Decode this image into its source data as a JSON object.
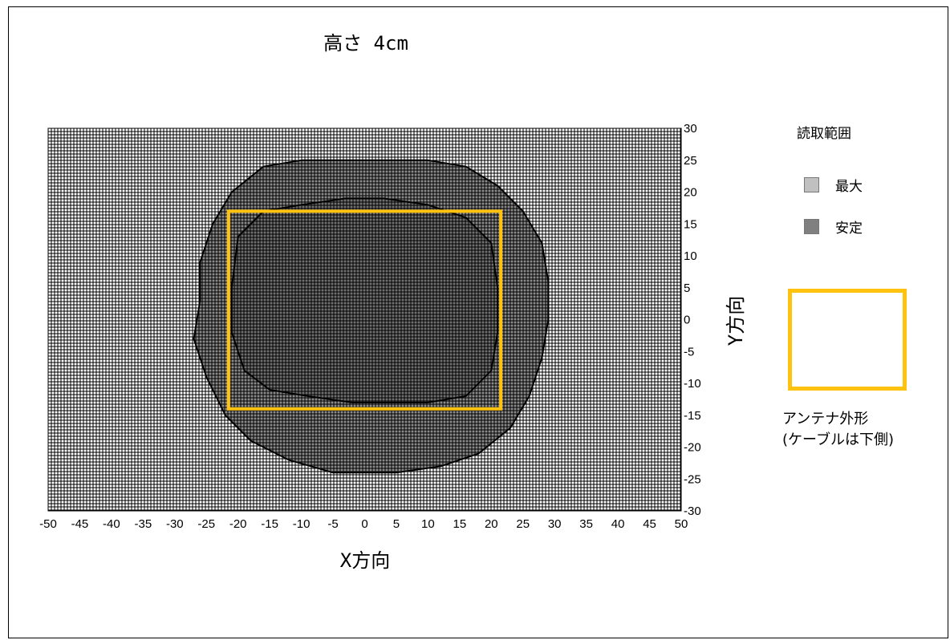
{
  "chart_data": {
    "type": "heatmap",
    "title": "高さ 4cm",
    "xlabel": "X方向",
    "ylabel": "Y方向",
    "xlim": [
      -50,
      50
    ],
    "ylim": [
      -30,
      30
    ],
    "x_ticks": [
      "-50",
      "-45",
      "-40",
      "-35",
      "-30",
      "-25",
      "-20",
      "-15",
      "-10",
      "-5",
      "0",
      "5",
      "10",
      "15",
      "20",
      "25",
      "30",
      "35",
      "40",
      "45",
      "50"
    ],
    "y_ticks": [
      "30",
      "25",
      "20",
      "15",
      "10",
      "5",
      "0",
      "-5",
      "-10",
      "-15",
      "-20",
      "-25",
      "-30"
    ],
    "grid": true,
    "legend": {
      "title": "読取範囲",
      "position": "right",
      "items": [
        {
          "label": "最大",
          "color": "#C0C0C0"
        },
        {
          "label": "安定",
          "color": "#808080"
        }
      ]
    },
    "regions": [
      {
        "name": "最大",
        "fill": "#808080",
        "boundary": [
          [
            -26,
            9
          ],
          [
            -24,
            15
          ],
          [
            -21,
            20
          ],
          [
            -16,
            24
          ],
          [
            -10,
            25
          ],
          [
            -3,
            25
          ],
          [
            2,
            25
          ],
          [
            10,
            25
          ],
          [
            16,
            24
          ],
          [
            21,
            21
          ],
          [
            25,
            17
          ],
          [
            28,
            12
          ],
          [
            29,
            6
          ],
          [
            29,
            0
          ],
          [
            28,
            -6
          ],
          [
            26,
            -12
          ],
          [
            23,
            -17
          ],
          [
            18,
            -21
          ],
          [
            12,
            -23
          ],
          [
            5,
            -24
          ],
          [
            0,
            -24
          ],
          [
            -5,
            -24
          ],
          [
            -12,
            -22
          ],
          [
            -18,
            -19
          ],
          [
            -22,
            -15
          ],
          [
            -25,
            -9
          ],
          [
            -27,
            -3
          ],
          [
            -26,
            3
          ]
        ]
      },
      {
        "name": "安定",
        "fill": "#6E6E6E",
        "boundary": [
          [
            -20,
            13
          ],
          [
            -16,
            17
          ],
          [
            -10,
            18
          ],
          [
            -3,
            19
          ],
          [
            3,
            19
          ],
          [
            10,
            18
          ],
          [
            16,
            16
          ],
          [
            20,
            12
          ],
          [
            21,
            5
          ],
          [
            21,
            -2
          ],
          [
            20,
            -8
          ],
          [
            16,
            -12
          ],
          [
            10,
            -13
          ],
          [
            4,
            -13
          ],
          [
            -2,
            -13
          ],
          [
            -9,
            -12
          ],
          [
            -15,
            -11
          ],
          [
            -19,
            -8
          ],
          [
            -21,
            -2
          ],
          [
            -21,
            5
          ]
        ]
      }
    ],
    "antenna_outline": {
      "x": [
        -21.5,
        21.5
      ],
      "y": [
        -14,
        17
      ],
      "color": "#FFC20E"
    },
    "annotation": "アンテナ外形\n(ケーブルは下側)"
  }
}
